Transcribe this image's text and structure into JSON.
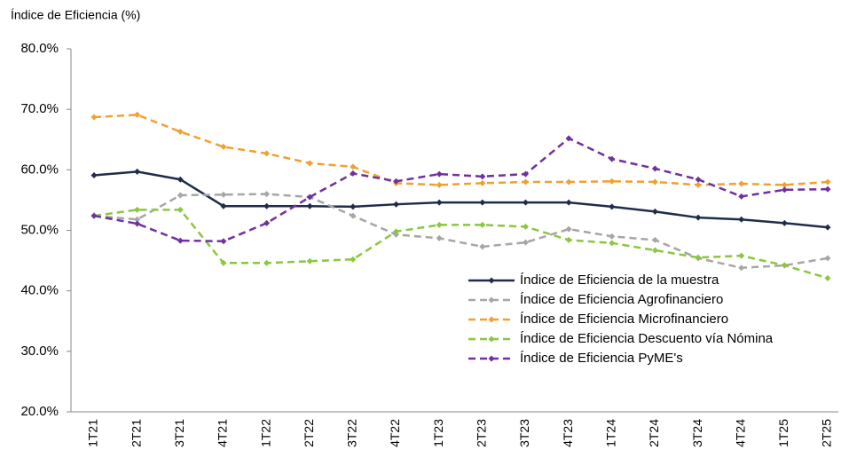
{
  "chart_data": {
    "type": "line",
    "title": "Índice de Eficiencia (%)",
    "categories": [
      "1T21",
      "2T21",
      "3T21",
      "4T21",
      "1T22",
      "2T22",
      "3T22",
      "4T22",
      "1T23",
      "2T23",
      "3T23",
      "4T23",
      "1T24",
      "2T24",
      "3T24",
      "4T24",
      "1T25",
      "2T25"
    ],
    "series": [
      {
        "name": "Índice de Eficiencia de la muestra",
        "color": "#1f2d4a",
        "dashed": false,
        "values": [
          59.1,
          59.7,
          58.4,
          54.0,
          54.0,
          54.0,
          53.9,
          54.3,
          54.6,
          54.6,
          54.6,
          54.6,
          53.9,
          53.1,
          52.1,
          51.8,
          51.2,
          50.5
        ]
      },
      {
        "name": "Índice de Eficiencia Agrofinanciero",
        "color": "#a6a6a6",
        "dashed": true,
        "values": [
          52.4,
          51.8,
          55.8,
          55.9,
          56.0,
          55.5,
          52.4,
          49.3,
          48.7,
          47.3,
          48.0,
          50.2,
          49.0,
          48.4,
          45.4,
          43.8,
          44.2,
          45.4
        ]
      },
      {
        "name": "Índice de Eficiencia Microfinanciero",
        "color": "#f0a030",
        "dashed": true,
        "values": [
          68.7,
          69.1,
          66.3,
          63.8,
          62.7,
          61.1,
          60.5,
          57.8,
          57.5,
          57.8,
          58.0,
          58.0,
          58.1,
          58.0,
          57.5,
          57.7,
          57.5,
          58.0
        ]
      },
      {
        "name": "Índice de Eficiencia Descuento vía Nómina",
        "color": "#8cc63f",
        "dashed": true,
        "values": [
          52.4,
          53.4,
          53.4,
          44.6,
          44.6,
          44.9,
          45.2,
          49.8,
          50.9,
          50.9,
          50.6,
          48.4,
          47.9,
          46.7,
          45.5,
          45.8,
          44.2,
          42.1
        ]
      },
      {
        "name": "Índice de Eficiencia PyME's",
        "color": "#7030a0",
        "dashed": true,
        "values": [
          52.4,
          51.1,
          48.3,
          48.2,
          51.2,
          55.5,
          59.4,
          58.1,
          59.3,
          58.9,
          59.3,
          65.2,
          61.8,
          60.2,
          58.4,
          55.6,
          56.7,
          56.8
        ]
      }
    ],
    "ylim": [
      20,
      80
    ],
    "yticks": [
      {
        "value": 20,
        "label": "20.0%"
      },
      {
        "value": 30,
        "label": "30.0%"
      },
      {
        "value": 40,
        "label": "40.0%"
      },
      {
        "value": 50,
        "label": "50.0%"
      },
      {
        "value": 60,
        "label": "60.0%"
      },
      {
        "value": 70,
        "label": "70.0%"
      },
      {
        "value": 80,
        "label": "80.0%"
      }
    ],
    "grid": false,
    "legend": "lower-right"
  }
}
